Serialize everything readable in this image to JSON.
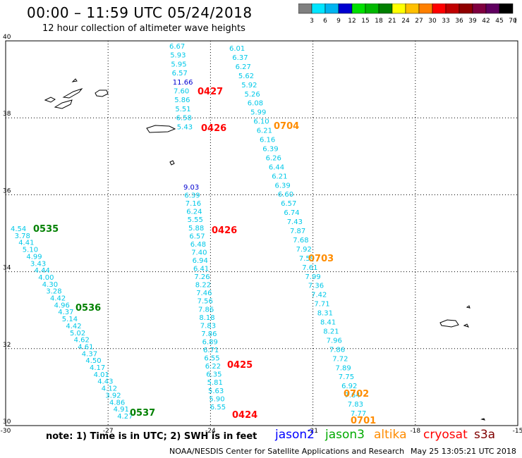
{
  "header": {
    "title": "00:00 – 11:59 UTC 05/24/2018",
    "subtitle": "12 hour collection of altimeter wave heights"
  },
  "colorbar": {
    "unit": "(ft)",
    "bins": [
      {
        "color": "#808080",
        "label": "3"
      },
      {
        "color": "#00e5ff",
        "label": "6"
      },
      {
        "color": "#00b4f0",
        "label": "9"
      },
      {
        "color": "#0000d0",
        "label": "12"
      },
      {
        "color": "#00e000",
        "label": "15"
      },
      {
        "color": "#00b800",
        "label": "18"
      },
      {
        "color": "#008000",
        "label": "21"
      },
      {
        "color": "#ffff00",
        "label": "24"
      },
      {
        "color": "#ffc000",
        "label": "27"
      },
      {
        "color": "#ff8000",
        "label": "30"
      },
      {
        "color": "#ff0000",
        "label": "33"
      },
      {
        "color": "#c00000",
        "label": "36"
      },
      {
        "color": "#900000",
        "label": "39"
      },
      {
        "color": "#800040",
        "label": "42"
      },
      {
        "color": "#600060",
        "label": "45"
      },
      {
        "color": "#000000",
        "label": "70"
      }
    ]
  },
  "axes": {
    "lon_ticks": [
      {
        "lon": -30,
        "label": "-30"
      },
      {
        "lon": -27,
        "label": "-27"
      },
      {
        "lon": -24,
        "label": "-24"
      },
      {
        "lon": -21,
        "label": "-21"
      },
      {
        "lon": -18,
        "label": "-18"
      },
      {
        "lon": -15,
        "label": "-15"
      }
    ],
    "lat_ticks": [
      {
        "lat": 40,
        "label": "40"
      },
      {
        "lat": 38,
        "label": "38"
      },
      {
        "lat": 36,
        "label": "36"
      },
      {
        "lat": 34,
        "label": "34"
      },
      {
        "lat": 32,
        "label": "32"
      },
      {
        "lat": 30,
        "label": "30"
      }
    ]
  },
  "tracks": [
    {
      "satellite": "jason3",
      "color": "#00aa00",
      "time": "0535",
      "heights": [
        "4.54",
        "3.78",
        "4.41",
        "5.10",
        "4.99",
        "3.43",
        "4.44",
        "4.00",
        "4.30",
        "3.28",
        "4.42",
        "4.96",
        "4.37",
        "5.14",
        "4.42",
        "5.02",
        "4.62",
        "4.61",
        "4.37",
        "4.50",
        "4.17",
        "4.01",
        "4.43",
        "4.12",
        "3.92",
        "4.86",
        "4.91",
        "4.27"
      ]
    },
    {
      "satellite": "jason3",
      "color": "#00aa00",
      "time": "0536",
      "heights": []
    },
    {
      "satellite": "jason3",
      "color": "#00aa00",
      "time": "0537",
      "heights": []
    },
    {
      "satellite": "cryosat",
      "color": "#ff0000",
      "time": "0427",
      "heights": [
        "6.67",
        "5.93",
        "5.95",
        "6.57",
        "11.66",
        "7.60",
        "5.86",
        "5.51",
        "6.58",
        "5.43"
      ]
    },
    {
      "satellite": "cryosat",
      "color": "#ff0000",
      "time": "0426",
      "heights": [
        "9.03",
        "6.39",
        "7.16",
        "6.24",
        "5.55",
        "5.88",
        "6.57",
        "6.48",
        "7.40",
        "6.94",
        "6.41",
        "7.26",
        "8.22",
        "7.46",
        "7.56",
        "7.86",
        "8.18",
        "7.83",
        "7.86",
        "6.89",
        "6.71",
        "6.55",
        "6.22",
        "6.35",
        "5.81",
        "5.63",
        "5.90",
        "6.55"
      ]
    },
    {
      "satellite": "cryosat",
      "color": "#ff0000",
      "time": "0426b",
      "heights": []
    },
    {
      "satellite": "cryosat",
      "color": "#ff0000",
      "time": "0425",
      "heights": []
    },
    {
      "satellite": "cryosat",
      "color": "#ff0000",
      "time": "0424",
      "heights": []
    },
    {
      "satellite": "altika",
      "color": "#ff8c00",
      "time": "0704",
      "heights": [
        "6.01",
        "6.37",
        "6.27",
        "5.62",
        "5.92",
        "5.26",
        "6.08",
        "5.99",
        "6.10",
        "6.21",
        "6.16",
        "6.39",
        "6.26",
        "6.44",
        "6.21",
        "6.39",
        "6.60",
        "6.57",
        "6.74",
        "7.43",
        "7.87",
        "7.68",
        "7.92",
        "7.59",
        "7.61",
        "7.99",
        "7.36",
        "7.42",
        "7.71",
        "8.31",
        "8.41",
        "8.21",
        "7.96",
        "7.86",
        "7.72",
        "7.89",
        "7.75",
        "6.92",
        "7.64",
        "7.83",
        "7.77"
      ]
    },
    {
      "satellite": "altika",
      "color": "#ff8c00",
      "time": "0703",
      "heights": []
    },
    {
      "satellite": "altika",
      "color": "#ff8c00",
      "time": "0702",
      "heights": []
    },
    {
      "satellite": "altika",
      "color": "#ff8c00",
      "time": "0701",
      "heights": []
    }
  ],
  "time_labels": [
    {
      "text": "0535",
      "color": "#008000"
    },
    {
      "text": "0536",
      "color": "#008000"
    },
    {
      "text": "0537",
      "color": "#008000"
    },
    {
      "text": "0427",
      "color": "#ff0000"
    },
    {
      "text": "0426",
      "color": "#ff0000"
    },
    {
      "text": "0426",
      "color": "#ff0000"
    },
    {
      "text": "0425",
      "color": "#ff0000"
    },
    {
      "text": "0424",
      "color": "#ff0000"
    },
    {
      "text": "0704",
      "color": "#ff8c00"
    },
    {
      "text": "0703",
      "color": "#ff8c00"
    },
    {
      "text": "0702",
      "color": "#ff8c00"
    },
    {
      "text": "0701",
      "color": "#ff8c00"
    }
  ],
  "note": "note:  1) Time is in UTC;  2) SWH is in feet",
  "satellites": [
    {
      "name": "jason2",
      "color": "#0000ff"
    },
    {
      "name": "jason3",
      "color": "#00aa00"
    },
    {
      "name": "altika",
      "color": "#ff8c00"
    },
    {
      "name": "cryosat",
      "color": "#ff0000"
    },
    {
      "name": "s3a",
      "color": "#800000"
    }
  ],
  "footer": {
    "credit": "NOAA/NESDIS Center for Satellite Applications and Research",
    "generated": "May 25 13:05:21 UTC 2018"
  }
}
